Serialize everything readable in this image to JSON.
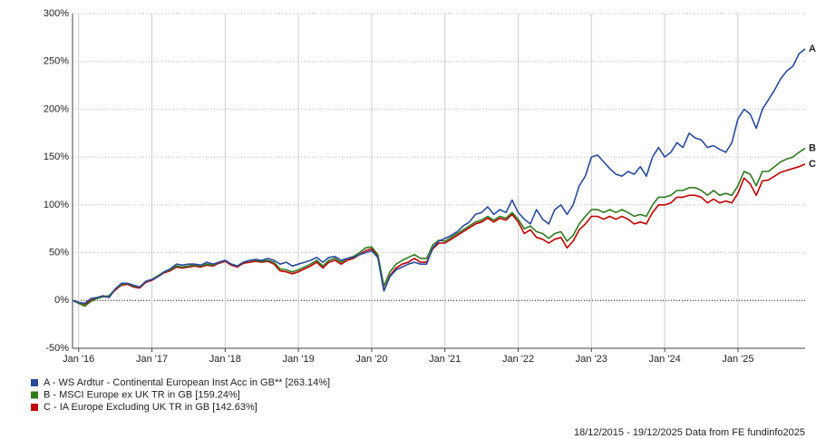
{
  "chart_data": {
    "type": "line",
    "x": [
      "2015-12",
      "2016-01",
      "2016-02",
      "2016-03",
      "2016-04",
      "2016-05",
      "2016-06",
      "2016-07",
      "2016-08",
      "2016-09",
      "2016-10",
      "2016-11",
      "2016-12",
      "2017-01",
      "2017-02",
      "2017-03",
      "2017-04",
      "2017-05",
      "2017-06",
      "2017-07",
      "2017-08",
      "2017-09",
      "2017-10",
      "2017-11",
      "2017-12",
      "2018-01",
      "2018-02",
      "2018-03",
      "2018-04",
      "2018-05",
      "2018-06",
      "2018-07",
      "2018-08",
      "2018-09",
      "2018-10",
      "2018-11",
      "2018-12",
      "2019-01",
      "2019-02",
      "2019-03",
      "2019-04",
      "2019-05",
      "2019-06",
      "2019-07",
      "2019-08",
      "2019-09",
      "2019-10",
      "2019-11",
      "2019-12",
      "2020-01",
      "2020-02",
      "2020-03",
      "2020-04",
      "2020-05",
      "2020-06",
      "2020-07",
      "2020-08",
      "2020-09",
      "2020-10",
      "2020-11",
      "2020-12",
      "2021-01",
      "2021-02",
      "2021-03",
      "2021-04",
      "2021-05",
      "2021-06",
      "2021-07",
      "2021-08",
      "2021-09",
      "2021-10",
      "2021-11",
      "2021-12",
      "2022-01",
      "2022-02",
      "2022-03",
      "2022-04",
      "2022-05",
      "2022-06",
      "2022-07",
      "2022-08",
      "2022-09",
      "2022-10",
      "2022-11",
      "2022-12",
      "2023-01",
      "2023-02",
      "2023-03",
      "2023-04",
      "2023-05",
      "2023-06",
      "2023-07",
      "2023-08",
      "2023-09",
      "2023-10",
      "2023-11",
      "2023-12",
      "2024-01",
      "2024-02",
      "2024-03",
      "2024-04",
      "2024-05",
      "2024-06",
      "2024-07",
      "2024-08",
      "2024-09",
      "2024-10",
      "2024-11",
      "2024-12",
      "2025-01",
      "2025-02",
      "2025-03",
      "2025-04",
      "2025-05",
      "2025-06",
      "2025-07",
      "2025-08",
      "2025-09",
      "2025-10",
      "2025-11",
      "2025-12"
    ],
    "series": [
      {
        "name": "A - WS Ardtur - Continental European Inst Acc in GB** [263.14%]",
        "end_label": "A",
        "color": "#2a4b9b",
        "values": [
          0,
          -2,
          -3,
          2,
          3,
          5,
          3,
          12,
          18,
          18,
          16,
          14,
          20,
          22,
          25,
          30,
          33,
          38,
          37,
          38,
          38,
          37,
          40,
          38,
          40,
          42,
          38,
          36,
          40,
          42,
          43,
          42,
          44,
          42,
          38,
          40,
          36,
          38,
          40,
          42,
          45,
          40,
          45,
          46,
          42,
          44,
          45,
          48,
          50,
          52,
          45,
          10,
          25,
          32,
          35,
          38,
          40,
          38,
          38,
          55,
          62,
          65,
          68,
          72,
          78,
          82,
          90,
          92,
          98,
          90,
          95,
          92,
          105,
          92,
          85,
          80,
          95,
          85,
          80,
          95,
          100,
          90,
          100,
          120,
          130,
          150,
          152,
          145,
          138,
          132,
          130,
          135,
          132,
          140,
          130,
          150,
          160,
          150,
          155,
          165,
          160,
          175,
          170,
          168,
          160,
          162,
          158,
          155,
          165,
          190,
          200,
          195,
          180,
          200,
          210,
          220,
          232,
          240,
          245,
          258,
          263.14
        ]
      },
      {
        "name": "B - MSCI Europe ex UK TR in GB [159.24%]",
        "end_label": "B",
        "color": "#2f7a1f",
        "values": [
          0,
          -3,
          -6,
          -1,
          2,
          4,
          5,
          12,
          17,
          18,
          15,
          14,
          20,
          22,
          26,
          30,
          32,
          36,
          35,
          36,
          37,
          36,
          38,
          37,
          40,
          42,
          38,
          36,
          40,
          42,
          42,
          41,
          42,
          40,
          33,
          32,
          30,
          32,
          35,
          38,
          42,
          36,
          42,
          44,
          40,
          44,
          46,
          50,
          55,
          56,
          48,
          15,
          30,
          38,
          42,
          45,
          48,
          44,
          44,
          58,
          63,
          62,
          66,
          70,
          74,
          78,
          82,
          84,
          88,
          84,
          88,
          86,
          92,
          85,
          75,
          78,
          72,
          70,
          65,
          70,
          72,
          62,
          68,
          80,
          88,
          95,
          95,
          92,
          95,
          92,
          95,
          92,
          88,
          90,
          88,
          100,
          108,
          108,
          110,
          115,
          115,
          118,
          118,
          115,
          110,
          115,
          110,
          112,
          110,
          120,
          135,
          132,
          120,
          135,
          135,
          140,
          145,
          148,
          150,
          155,
          159.24
        ]
      },
      {
        "name": "C - IA Europe Excluding UK TR in GB [142.63%]",
        "end_label": "C",
        "color": "#c00000",
        "values": [
          0,
          -2,
          -4,
          0,
          3,
          4,
          4,
          11,
          16,
          17,
          14,
          13,
          19,
          21,
          25,
          29,
          31,
          35,
          34,
          35,
          36,
          35,
          37,
          36,
          39,
          41,
          37,
          35,
          39,
          40,
          41,
          40,
          41,
          38,
          31,
          30,
          28,
          30,
          33,
          36,
          40,
          34,
          40,
          42,
          38,
          42,
          44,
          48,
          52,
          54,
          46,
          10,
          26,
          34,
          38,
          40,
          44,
          40,
          40,
          54,
          60,
          60,
          64,
          68,
          72,
          76,
          80,
          82,
          86,
          82,
          86,
          84,
          90,
          82,
          70,
          74,
          66,
          64,
          60,
          64,
          66,
          55,
          62,
          74,
          80,
          88,
          88,
          85,
          88,
          85,
          88,
          85,
          80,
          82,
          80,
          92,
          100,
          100,
          102,
          108,
          108,
          110,
          110,
          108,
          102,
          106,
          102,
          104,
          102,
          112,
          128,
          122,
          110,
          125,
          126,
          130,
          134,
          136,
          138,
          140,
          142.63
        ]
      }
    ],
    "xlim": [
      "2015-12",
      "2025-12"
    ],
    "xticks": [
      {
        "value": "2016-01",
        "label": "Jan '16"
      },
      {
        "value": "2017-01",
        "label": "Jan '17"
      },
      {
        "value": "2018-01",
        "label": "Jan '18"
      },
      {
        "value": "2019-01",
        "label": "Jan '19"
      },
      {
        "value": "2020-01",
        "label": "Jan '20"
      },
      {
        "value": "2021-01",
        "label": "Jan '21"
      },
      {
        "value": "2022-01",
        "label": "Jan '22"
      },
      {
        "value": "2023-01",
        "label": "Jan '23"
      },
      {
        "value": "2024-01",
        "label": "Jan '24"
      },
      {
        "value": "2025-01",
        "label": "Jan '25"
      }
    ],
    "ylim": [
      -50,
      300
    ],
    "yticks": [
      {
        "value": -50,
        "label": "-50%"
      },
      {
        "value": 0,
        "label": "0%"
      },
      {
        "value": 50,
        "label": "50%"
      },
      {
        "value": 100,
        "label": "100%"
      },
      {
        "value": 150,
        "label": "150%"
      },
      {
        "value": 200,
        "label": "200%"
      },
      {
        "value": 250,
        "label": "250%"
      },
      {
        "value": 300,
        "label": "300%"
      }
    ],
    "grid": true,
    "footer": "18/12/2015 - 19/12/2025 Data from FE fundinfo2025"
  }
}
